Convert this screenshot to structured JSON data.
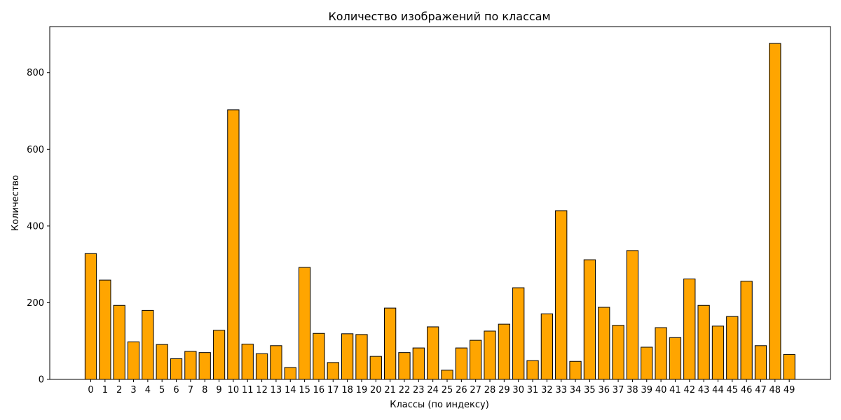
{
  "chart_data": {
    "type": "bar",
    "title": "Количество изображений по классам",
    "xlabel": "Классы (по индексу)",
    "ylabel": "Количество",
    "categories": [
      "0",
      "1",
      "2",
      "3",
      "4",
      "5",
      "6",
      "7",
      "8",
      "9",
      "10",
      "11",
      "12",
      "13",
      "14",
      "15",
      "16",
      "17",
      "18",
      "19",
      "20",
      "21",
      "22",
      "23",
      "24",
      "25",
      "26",
      "27",
      "28",
      "29",
      "30",
      "31",
      "32",
      "33",
      "34",
      "35",
      "36",
      "37",
      "38",
      "39",
      "40",
      "41",
      "42",
      "43",
      "44",
      "45",
      "46",
      "47",
      "48",
      "49"
    ],
    "values": [
      328,
      259,
      193,
      98,
      180,
      91,
      54,
      73,
      70,
      128,
      703,
      92,
      67,
      88,
      31,
      292,
      120,
      44,
      119,
      117,
      60,
      186,
      70,
      82,
      137,
      24,
      82,
      102,
      126,
      144,
      239,
      49,
      171,
      440,
      47,
      312,
      188,
      141,
      336,
      84,
      135,
      109,
      262,
      193,
      139,
      164,
      256,
      88,
      876,
      65
    ],
    "yticks": [
      0,
      200,
      400,
      600,
      800
    ],
    "ylim": [
      0,
      920
    ],
    "bar_color": "#FFA500",
    "edge_color": "#000000",
    "grid": false,
    "legend": "none"
  }
}
